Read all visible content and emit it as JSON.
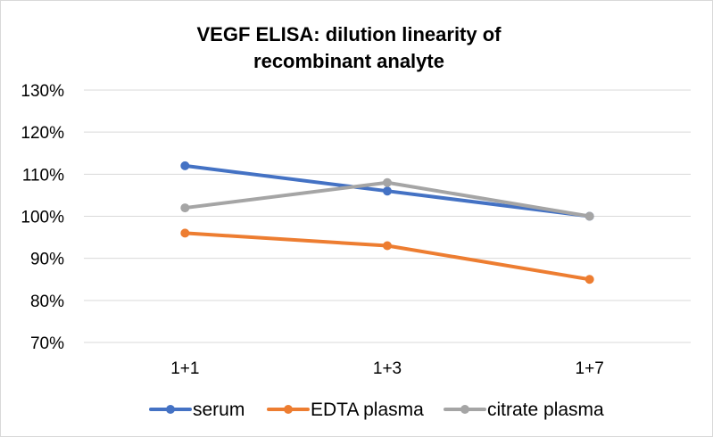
{
  "chart_data": {
    "type": "line",
    "title_lines": [
      "VEGF ELISA: dilution linearity of",
      "recombinant analyte"
    ],
    "xlabel": "",
    "ylabel": "",
    "categories": [
      "1+1",
      "1+3",
      "1+7"
    ],
    "y_ticks": [
      "130%",
      "120%",
      "110%",
      "100%",
      "90%",
      "80%",
      "70%"
    ],
    "ylim": [
      70,
      130
    ],
    "y_tick_step": 10,
    "y_unit": "%",
    "grid": "horizontal",
    "legend_position": "bottom",
    "series": [
      {
        "name": "serum",
        "values": [
          112,
          106,
          100
        ],
        "color": "#4472c4"
      },
      {
        "name": "EDTA plasma",
        "values": [
          96,
          93,
          85
        ],
        "color": "#ed7d31"
      },
      {
        "name": "citrate plasma",
        "values": [
          102,
          108,
          100
        ],
        "color": "#a5a5a5"
      }
    ]
  }
}
